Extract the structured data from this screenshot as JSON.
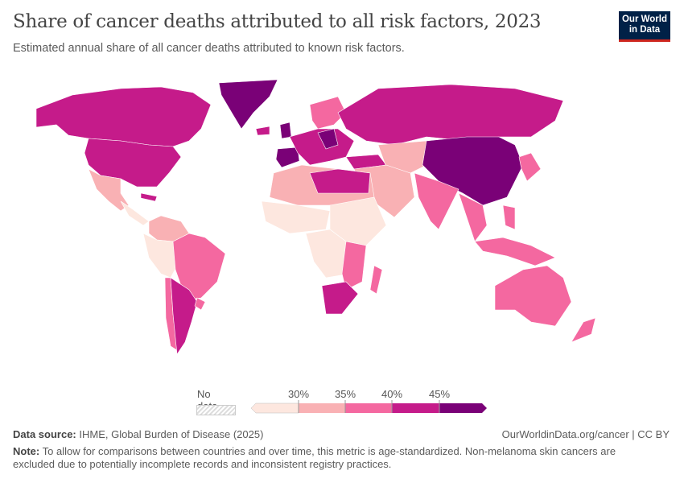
{
  "header": {
    "title": "Share of cancer deaths attributed to all risk factors, 2023",
    "subtitle": "Estimated annual share of all cancer deaths attributed to known risk factors.",
    "logo_line1": "Our World",
    "logo_line2": "in Data"
  },
  "legend": {
    "no_data_label": "No data",
    "ticks": [
      "30%",
      "35%",
      "40%",
      "45%"
    ],
    "colors": [
      "#fde7df",
      "#f9b1b4",
      "#f468a0",
      "#c51b8a",
      "#7a0177"
    ]
  },
  "footer": {
    "source_label": "Data source:",
    "source_text": "IHME, Global Burden of Disease (2025)",
    "url": "OurWorldinData.org/cancer | CC BY",
    "note_label": "Note:",
    "note_text": "To allow for comparisons between countries and over time, this metric is age-standardized. Non-melanoma skin cancers are excluded due to potentially incomplete records and inconsistent registry practices."
  }
}
